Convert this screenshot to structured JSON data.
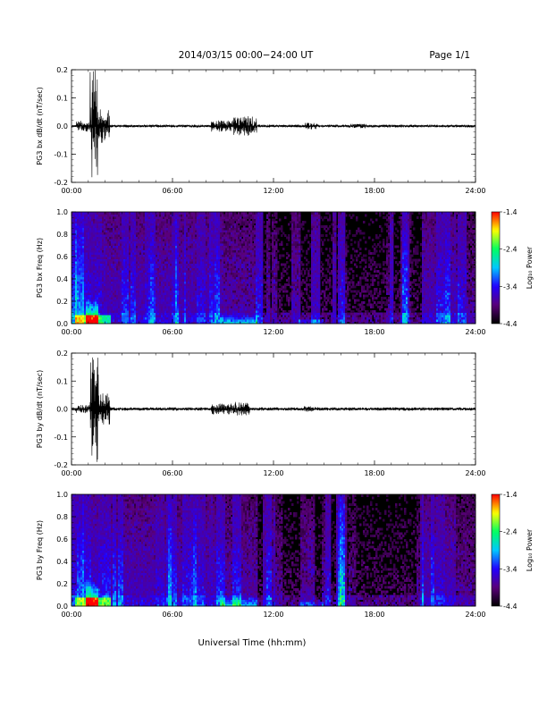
{
  "header": {
    "date_range": "2014/03/15  00:00−24:00 UT",
    "page": "Page 1/1"
  },
  "footer": {
    "x_axis_title": "Universal Time (hh:mm)"
  },
  "colorbar": {
    "title": "Log₁₀ Power",
    "ticks": [
      "-1.4",
      "-2.4",
      "-3.4",
      "-4.4"
    ],
    "range": [
      -4.4,
      -1.4
    ],
    "colormap": [
      "#000000",
      "#5a007a",
      "#2200ff",
      "#00c8ff",
      "#00ff60",
      "#ffff00",
      "#ff0000"
    ]
  },
  "chart_data": [
    {
      "type": "line",
      "ylabel": "PG3 bx dB/dt (nT/sec)",
      "ylim": [
        -0.2,
        0.2
      ],
      "xlim": [
        0,
        24
      ],
      "yticks": [
        "0.2",
        "0.1",
        "0.0",
        "-0.1",
        "-0.2"
      ],
      "xticks": [
        "00:00",
        "06:00",
        "12:00",
        "18:00",
        "24:00"
      ],
      "series": [
        {
          "color": "#000000",
          "bursts": [
            {
              "t": [
                0.3,
                1.1
              ],
              "amp": 0.02
            },
            {
              "t": [
                1.1,
                1.55
              ],
              "amp": 0.2
            },
            {
              "t": [
                1.55,
                2.3
              ],
              "amp": 0.06
            },
            {
              "t": [
                8.3,
                9.6
              ],
              "amp": 0.02
            },
            {
              "t": [
                9.6,
                11.0
              ],
              "amp": 0.035
            },
            {
              "t": [
                13.8,
                14.6
              ],
              "amp": 0.012
            },
            {
              "t": [
                16.5,
                17.5
              ],
              "amp": 0.008
            }
          ],
          "baseline_amp": 0.005
        }
      ]
    },
    {
      "type": "heatmap",
      "ylabel": "PG3 bx Freq (Hz)",
      "ylim": [
        0.0,
        1.0
      ],
      "xlim": [
        0,
        24
      ],
      "yticks": [
        "1.0",
        "0.8",
        "0.6",
        "0.4",
        "0.2",
        "0.0"
      ],
      "xticks": [
        "00:00",
        "06:00",
        "12:00",
        "18:00",
        "24:00"
      ],
      "value_range": [
        -4.4,
        -1.4
      ]
    },
    {
      "type": "line",
      "ylabel": "PG3 by dB/dt (nT/sec)",
      "ylim": [
        -0.2,
        0.2
      ],
      "xlim": [
        0,
        24
      ],
      "yticks": [
        "0.2",
        "0.1",
        "0.0",
        "-0.1",
        "-0.2"
      ],
      "xticks": [
        "00:00",
        "06:00",
        "12:00",
        "18:00",
        "24:00"
      ],
      "series": [
        {
          "color": "#000000",
          "bursts": [
            {
              "t": [
                0.2,
                1.1
              ],
              "amp": 0.015
            },
            {
              "t": [
                1.1,
                1.6
              ],
              "amp": 0.2
            },
            {
              "t": [
                1.6,
                2.3
              ],
              "amp": 0.06
            },
            {
              "t": [
                8.3,
                9.6
              ],
              "amp": 0.02
            },
            {
              "t": [
                9.6,
                10.6
              ],
              "amp": 0.025
            },
            {
              "t": [
                13.8,
                14.5
              ],
              "amp": 0.01
            }
          ],
          "baseline_amp": 0.006
        }
      ]
    },
    {
      "type": "heatmap",
      "ylabel": "PG3 by Freq (Hz)",
      "ylim": [
        0.0,
        1.0
      ],
      "xlim": [
        0,
        24
      ],
      "yticks": [
        "1.0",
        "0.8",
        "0.6",
        "0.4",
        "0.2",
        "0.0"
      ],
      "xticks": [
        "00:00",
        "06:00",
        "12:00",
        "18:00",
        "24:00"
      ],
      "value_range": [
        -4.4,
        -1.4
      ]
    }
  ]
}
